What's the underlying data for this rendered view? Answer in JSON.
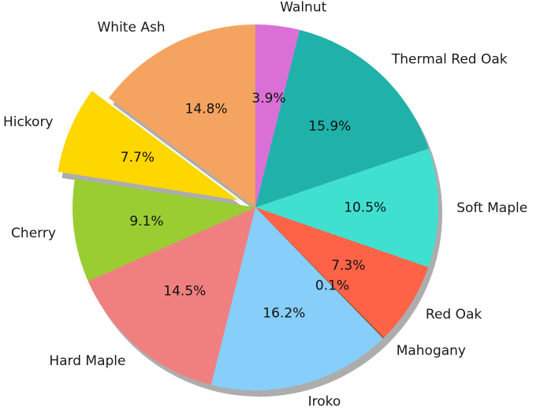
{
  "chart_data": {
    "type": "pie",
    "title": "",
    "slices": [
      {
        "label": "Walnut",
        "value": 3.9,
        "pct_label": "3.9%",
        "color": "#DA70D6"
      },
      {
        "label": "Thermal Red Oak",
        "value": 15.9,
        "pct_label": "15.9%",
        "color": "#20B2AA"
      },
      {
        "label": "Soft Maple",
        "value": 10.5,
        "pct_label": "10.5%",
        "color": "#40E0D0"
      },
      {
        "label": "Red Oak",
        "value": 7.3,
        "pct_label": "7.3%",
        "color": "#FF6347"
      },
      {
        "label": "Mahogany",
        "value": 0.1,
        "pct_label": "0.1%",
        "color": "#8B4513"
      },
      {
        "label": "Iroko",
        "value": 16.2,
        "pct_label": "16.2%",
        "color": "#87CEFA"
      },
      {
        "label": "Hard Maple",
        "value": 14.5,
        "pct_label": "14.5%",
        "color": "#F08080"
      },
      {
        "label": "Cherry",
        "value": 9.1,
        "pct_label": "9.1%",
        "color": "#9ACD32"
      },
      {
        "label": "Hickory",
        "value": 7.7,
        "pct_label": "7.7%",
        "color": "#FFD700",
        "exploded": true
      },
      {
        "label": "White Ash",
        "value": 14.8,
        "pct_label": "14.8%",
        "color": "#F4A460"
      }
    ],
    "start_angle_deg": 90,
    "direction": "clockwise",
    "shadow": true
  }
}
